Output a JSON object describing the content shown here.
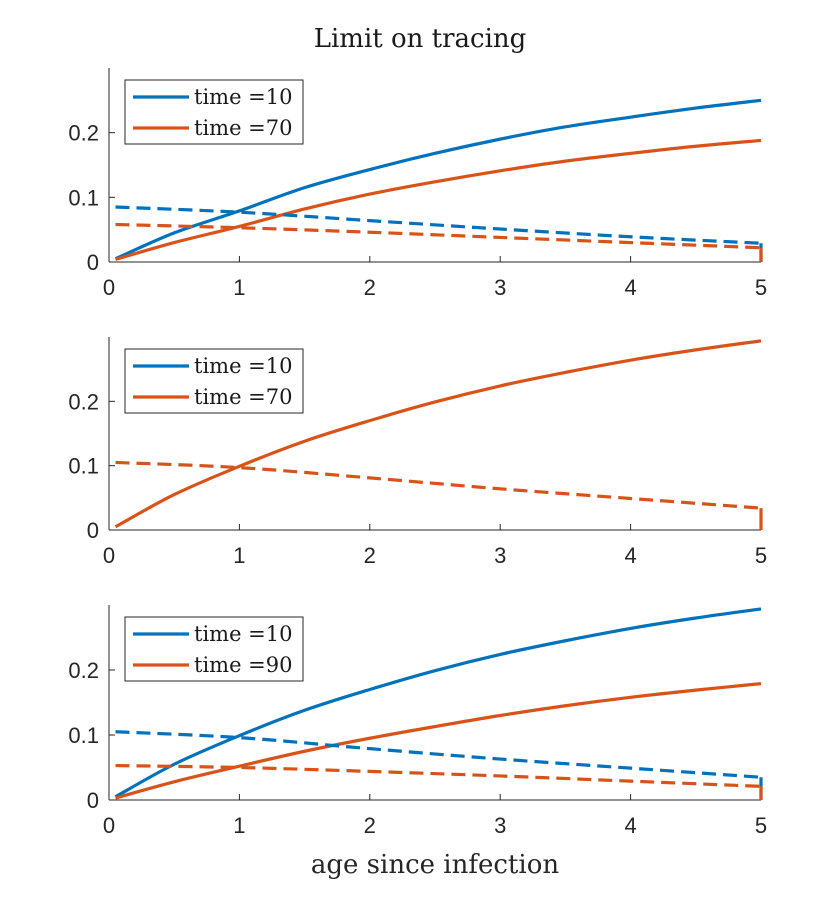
{
  "figure": {
    "title": "Limit on tracing",
    "xlabel": "age since infection"
  },
  "colors": {
    "series1": "#0072BD",
    "series2": "#D95319",
    "axis": "#262626"
  },
  "chart_data": [
    {
      "type": "line",
      "xlim": [
        0,
        5
      ],
      "ylim": [
        0,
        0.3
      ],
      "xticks": [
        "0",
        "1",
        "2",
        "3",
        "4",
        "5"
      ],
      "yticks": [
        "0",
        "0.1",
        "0.2"
      ],
      "legend_position": "top-left",
      "legend": [
        "time =10",
        "time =70"
      ],
      "series": [
        {
          "name": "time =10",
          "style": "solid",
          "color": "#0072BD",
          "x": [
            0.05,
            0.5,
            1,
            1.5,
            2,
            2.5,
            3,
            3.5,
            4,
            4.5,
            5
          ],
          "y": [
            0.005,
            0.045,
            0.079,
            0.115,
            0.143,
            0.168,
            0.19,
            0.209,
            0.224,
            0.238,
            0.25
          ]
        },
        {
          "name": "time =70",
          "style": "solid",
          "color": "#D95319",
          "x": [
            0.05,
            0.5,
            1,
            1.5,
            2,
            2.5,
            3,
            3.5,
            4,
            4.5,
            5
          ],
          "y": [
            0.004,
            0.03,
            0.055,
            0.082,
            0.105,
            0.124,
            0.141,
            0.156,
            0.168,
            0.179,
            0.188
          ]
        },
        {
          "style": "dashed",
          "color": "#0072BD",
          "x": [
            0.05,
            1,
            2,
            3,
            4,
            5
          ],
          "y": [
            0.085,
            0.077,
            0.064,
            0.051,
            0.039,
            0.029
          ]
        },
        {
          "style": "dashed",
          "color": "#D95319",
          "x": [
            0.05,
            1,
            2,
            3,
            4,
            5
          ],
          "y": [
            0.058,
            0.053,
            0.046,
            0.038,
            0.03,
            0.022
          ]
        }
      ]
    },
    {
      "type": "line",
      "xlim": [
        0,
        5
      ],
      "ylim": [
        0,
        0.3
      ],
      "xticks": [
        "0",
        "1",
        "2",
        "3",
        "4",
        "5"
      ],
      "yticks": [
        "0",
        "0.1",
        "0.2"
      ],
      "legend_position": "top-left",
      "legend": [
        "time =10",
        "time =70"
      ],
      "series": [
        {
          "name": "time =70",
          "style": "solid",
          "color": "#D95319",
          "x": [
            0.05,
            0.5,
            1,
            1.5,
            2,
            2.5,
            3,
            3.5,
            4,
            4.5,
            5
          ],
          "y": [
            0.005,
            0.055,
            0.099,
            0.138,
            0.17,
            0.199,
            0.224,
            0.245,
            0.264,
            0.28,
            0.294
          ]
        },
        {
          "style": "dashed",
          "color": "#D95319",
          "x": [
            0.05,
            1,
            2,
            3,
            4,
            5
          ],
          "y": [
            0.105,
            0.097,
            0.081,
            0.064,
            0.049,
            0.034
          ]
        }
      ]
    },
    {
      "type": "line",
      "xlim": [
        0,
        5
      ],
      "ylim": [
        0,
        0.3
      ],
      "xticks": [
        "0",
        "1",
        "2",
        "3",
        "4",
        "5"
      ],
      "yticks": [
        "0",
        "0.1",
        "0.2"
      ],
      "legend_position": "top-left",
      "legend": [
        "time =10",
        "time =90"
      ],
      "series": [
        {
          "name": "time =10",
          "style": "solid",
          "color": "#0072BD",
          "x": [
            0.05,
            0.5,
            1,
            1.5,
            2,
            2.5,
            3,
            3.5,
            4,
            4.5,
            5
          ],
          "y": [
            0.005,
            0.055,
            0.099,
            0.138,
            0.17,
            0.199,
            0.224,
            0.245,
            0.264,
            0.28,
            0.294
          ]
        },
        {
          "name": "time =90",
          "style": "solid",
          "color": "#D95319",
          "x": [
            0.05,
            0.5,
            1,
            1.5,
            2,
            2.5,
            3,
            3.5,
            4,
            4.5,
            5
          ],
          "y": [
            0.003,
            0.028,
            0.052,
            0.075,
            0.095,
            0.113,
            0.13,
            0.145,
            0.158,
            0.169,
            0.179
          ]
        },
        {
          "style": "dashed",
          "color": "#0072BD",
          "x": [
            0.05,
            1,
            2,
            3,
            4,
            5
          ],
          "y": [
            0.105,
            0.096,
            0.079,
            0.063,
            0.049,
            0.035
          ]
        },
        {
          "style": "dashed",
          "color": "#D95319",
          "x": [
            0.05,
            1,
            2,
            3,
            4,
            5
          ],
          "y": [
            0.053,
            0.05,
            0.044,
            0.037,
            0.029,
            0.021
          ]
        }
      ]
    }
  ]
}
